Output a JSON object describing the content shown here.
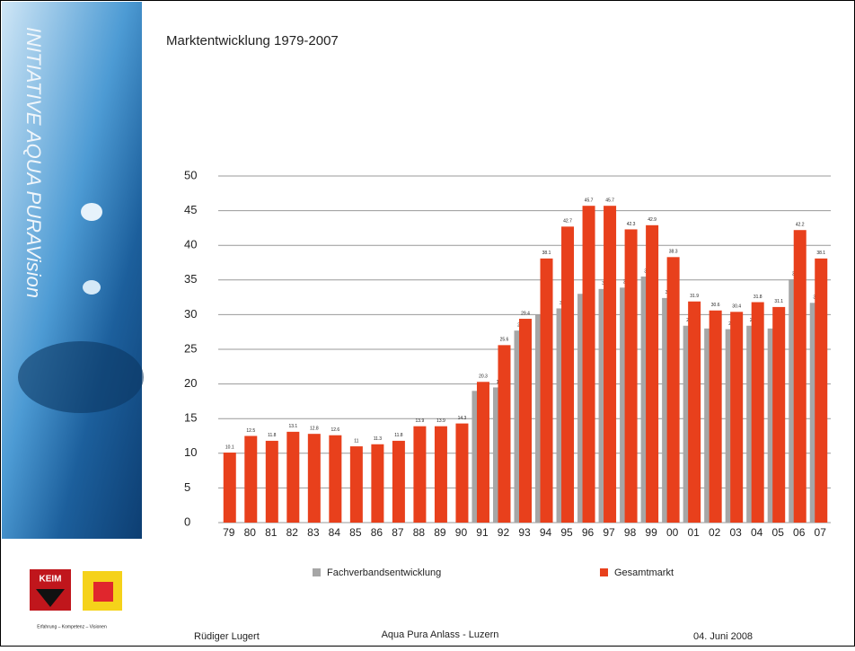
{
  "slide": {
    "sidebar_text": "INITIATIVE AQUA PURAVision",
    "logo_text": "KEIM",
    "logo_tagline": "Erfahrung – Kompetenz – Visionen",
    "footer_left": "Rüdiger Lugert",
    "footer_center": "Aqua Pura Anlass - Luzern",
    "footer_right": "04. Juni 2008"
  },
  "chart_data": {
    "type": "bar",
    "title": "Marktentwicklung 1979-2007",
    "categories": [
      "79",
      "80",
      "81",
      "82",
      "83",
      "84",
      "85",
      "86",
      "87",
      "88",
      "89",
      "90",
      "91",
      "92",
      "93",
      "94",
      "95",
      "96",
      "97",
      "98",
      "99",
      "00",
      "01",
      "02",
      "03",
      "04",
      "05",
      "06",
      "07"
    ],
    "series": [
      {
        "name": "Fachverbandsentwicklung",
        "color": "#a6a6a6",
        "values": [
          null,
          null,
          null,
          null,
          null,
          null,
          null,
          null,
          null,
          null,
          null,
          null,
          19.0,
          19.5,
          27.7,
          30.0,
          30.9,
          33.0,
          33.7,
          33.9,
          35.5,
          32.4,
          28.4,
          28.0,
          27.9,
          28.4,
          28.0,
          35.1,
          31.7
        ]
      },
      {
        "name": "Gesamtmarkt",
        "color": "#e8401c",
        "values": [
          10.1,
          12.5,
          11.8,
          13.1,
          12.8,
          12.6,
          11.0,
          11.3,
          11.8,
          13.9,
          13.9,
          14.3,
          20.3,
          25.6,
          29.4,
          38.1,
          42.7,
          45.7,
          45.7,
          42.3,
          42.9,
          38.3,
          31.9,
          30.6,
          30.4,
          31.8,
          31.1,
          42.2,
          38.1
        ]
      }
    ],
    "ylim": [
      0,
      50
    ],
    "yticks": [
      0,
      5,
      10,
      15,
      20,
      25,
      30,
      35,
      40,
      45,
      50
    ],
    "grid": true
  }
}
